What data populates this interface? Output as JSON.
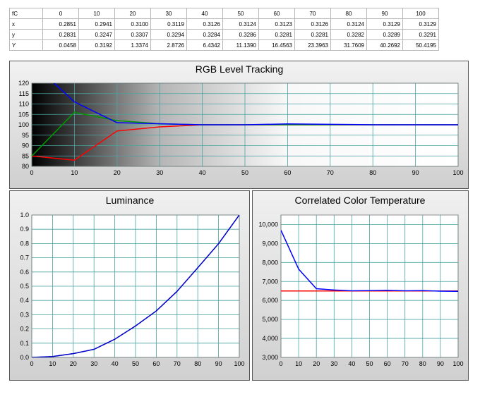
{
  "table": {
    "header_label": "fC",
    "columns": [
      "0",
      "10",
      "20",
      "30",
      "40",
      "50",
      "60",
      "70",
      "80",
      "90",
      "100"
    ],
    "rows": [
      {
        "label": "x",
        "values": [
          "0.2851",
          "0.2941",
          "0.3100",
          "0.3119",
          "0.3126",
          "0.3124",
          "0.3123",
          "0.3126",
          "0.3124",
          "0.3129",
          "0.3129"
        ]
      },
      {
        "label": "y",
        "values": [
          "0.2831",
          "0.3247",
          "0.3307",
          "0.3294",
          "0.3284",
          "0.3286",
          "0.3281",
          "0.3281",
          "0.3282",
          "0.3289",
          "0.3291"
        ]
      },
      {
        "label": "Y",
        "values": [
          "0.0458",
          "0.3192",
          "1.3374",
          "2.8726",
          "6.4342",
          "11.1390",
          "16.4563",
          "23.3963",
          "31.7609",
          "40.2692",
          "50.4195"
        ]
      }
    ]
  },
  "chart_data": [
    {
      "type": "line",
      "title": "RGB Level Tracking",
      "x": [
        0,
        10,
        20,
        30,
        40,
        50,
        60,
        70,
        80,
        90,
        100
      ],
      "xticks": [
        "0",
        "10",
        "20",
        "30",
        "40",
        "50",
        "60",
        "70",
        "80",
        "90",
        "100"
      ],
      "yticks": [
        "80",
        "85",
        "90",
        "95",
        "100",
        "105",
        "110",
        "115",
        "120"
      ],
      "xlim": [
        0,
        100
      ],
      "ylim": [
        80,
        120
      ],
      "grid": true,
      "background": "black-to-white gradient",
      "series": [
        {
          "color": "#ff0000",
          "points": [
            [
              0,
              85
            ],
            [
              10,
              83
            ],
            [
              20,
              97
            ],
            [
              30,
              99
            ],
            [
              40,
              100
            ],
            [
              50,
              100
            ],
            [
              60,
              100
            ],
            [
              70,
              100
            ],
            [
              80,
              100
            ],
            [
              90,
              100
            ],
            [
              100,
              100
            ]
          ]
        },
        {
          "color": "#009900",
          "points": [
            [
              0,
              85
            ],
            [
              10,
              106
            ],
            [
              20,
              102
            ],
            [
              30,
              100.5
            ],
            [
              40,
              100
            ],
            [
              50,
              100
            ],
            [
              60,
              100
            ],
            [
              70,
              100
            ],
            [
              80,
              100
            ],
            [
              90,
              100
            ],
            [
              100,
              100
            ]
          ]
        },
        {
          "color": "#0000ff",
          "points": [
            [
              10,
              111
            ],
            [
              20,
              101
            ],
            [
              30,
              100.5
            ],
            [
              40,
              100
            ],
            [
              50,
              100
            ],
            [
              60,
              100.4
            ],
            [
              70,
              100.2
            ],
            [
              80,
              100
            ],
            [
              90,
              100
            ],
            [
              100,
              100
            ]
          ]
        }
      ],
      "blue_offchart_start": [
        0,
        130
      ]
    },
    {
      "type": "line",
      "title": "Luminance",
      "x": [
        0,
        10,
        20,
        30,
        40,
        50,
        60,
        70,
        80,
        90,
        100
      ],
      "xticks": [
        "0",
        "10",
        "20",
        "30",
        "40",
        "50",
        "60",
        "70",
        "80",
        "90",
        "100"
      ],
      "yticks": [
        "0.0",
        "0.1",
        "0.2",
        "0.3",
        "0.4",
        "0.5",
        "0.6",
        "0.7",
        "0.8",
        "0.9",
        "1.0"
      ],
      "xlim": [
        0,
        100
      ],
      "ylim": [
        0,
        1
      ],
      "grid": true,
      "series": [
        {
          "color": "#000000",
          "dashed": true,
          "points": [
            [
              0,
              0
            ],
            [
              10,
              0.006
            ],
            [
              20,
              0.027
            ],
            [
              30,
              0.057
            ],
            [
              40,
              0.128
            ],
            [
              50,
              0.221
            ],
            [
              60,
              0.326
            ],
            [
              70,
              0.464
            ],
            [
              80,
              0.63
            ],
            [
              90,
              0.799
            ],
            [
              100,
              1.0
            ]
          ]
        },
        {
          "color": "#0000cc",
          "points": [
            [
              0,
              0
            ],
            [
              10,
              0.0063
            ],
            [
              20,
              0.0265
            ],
            [
              30,
              0.057
            ],
            [
              40,
              0.1276
            ],
            [
              50,
              0.2209
            ],
            [
              60,
              0.3264
            ],
            [
              70,
              0.464
            ],
            [
              80,
              0.6299
            ],
            [
              90,
              0.7987
            ],
            [
              100,
              1.0
            ]
          ]
        }
      ]
    },
    {
      "type": "line",
      "title": "Correlated Color Temperature",
      "x": [
        0,
        10,
        20,
        30,
        40,
        50,
        60,
        70,
        80,
        90,
        100
      ],
      "xticks": [
        "0",
        "10",
        "20",
        "30",
        "40",
        "50",
        "60",
        "70",
        "80",
        "90",
        "100"
      ],
      "yticks": [
        "3,000",
        "4,000",
        "5,000",
        "6,000",
        "7,000",
        "8,000",
        "9,000",
        "10,000"
      ],
      "xlim": [
        0,
        100
      ],
      "ylim": [
        3000,
        10500
      ],
      "grid": true,
      "series": [
        {
          "color": "#ff0000",
          "points": [
            [
              0,
              6500
            ],
            [
              100,
              6500
            ]
          ]
        },
        {
          "color": "#0000ff",
          "points": [
            [
              0,
              9700
            ],
            [
              10,
              7650
            ],
            [
              20,
              6620
            ],
            [
              30,
              6550
            ],
            [
              40,
              6510
            ],
            [
              50,
              6520
            ],
            [
              60,
              6530
            ],
            [
              70,
              6510
            ],
            [
              80,
              6520
            ],
            [
              90,
              6490
            ],
            [
              100,
              6480
            ]
          ]
        }
      ]
    }
  ]
}
